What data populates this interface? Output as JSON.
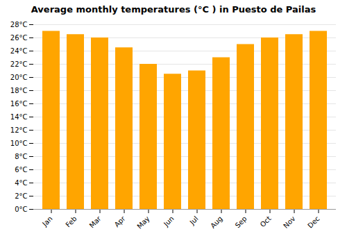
{
  "chart_data": {
    "type": "bar",
    "title": "Average monthly temperatures (°C ) in Puesto de Pailas",
    "categories": [
      "Jan",
      "Feb",
      "Mar",
      "Apr",
      "May",
      "Jun",
      "Jul",
      "Aug",
      "Sep",
      "Oct",
      "Nov",
      "Dec"
    ],
    "values": [
      27.0,
      26.5,
      26.0,
      24.5,
      22.0,
      20.5,
      21.0,
      23.0,
      25.0,
      26.0,
      26.5,
      27.0
    ],
    "color": "#FFA500",
    "ylim": [
      0,
      28
    ],
    "yticks": [
      {
        "value": 0,
        "label": "0°C"
      },
      {
        "value": 2,
        "label": "2°C"
      },
      {
        "value": 4,
        "label": "4°C"
      },
      {
        "value": 6,
        "label": "6°C"
      },
      {
        "value": 8,
        "label": "8°C"
      },
      {
        "value": 10,
        "label": "10°C"
      },
      {
        "value": 12,
        "label": "12°C"
      },
      {
        "value": 14,
        "label": "14°C"
      },
      {
        "value": 16,
        "label": "16°C"
      },
      {
        "value": 18,
        "label": "18°C"
      },
      {
        "value": 20,
        "label": "20°C"
      },
      {
        "value": 22,
        "label": "22°C"
      },
      {
        "value": 24,
        "label": "24°C"
      },
      {
        "value": 26,
        "label": "26°C"
      },
      {
        "value": 28,
        "label": "28°C"
      }
    ],
    "grid": true
  }
}
